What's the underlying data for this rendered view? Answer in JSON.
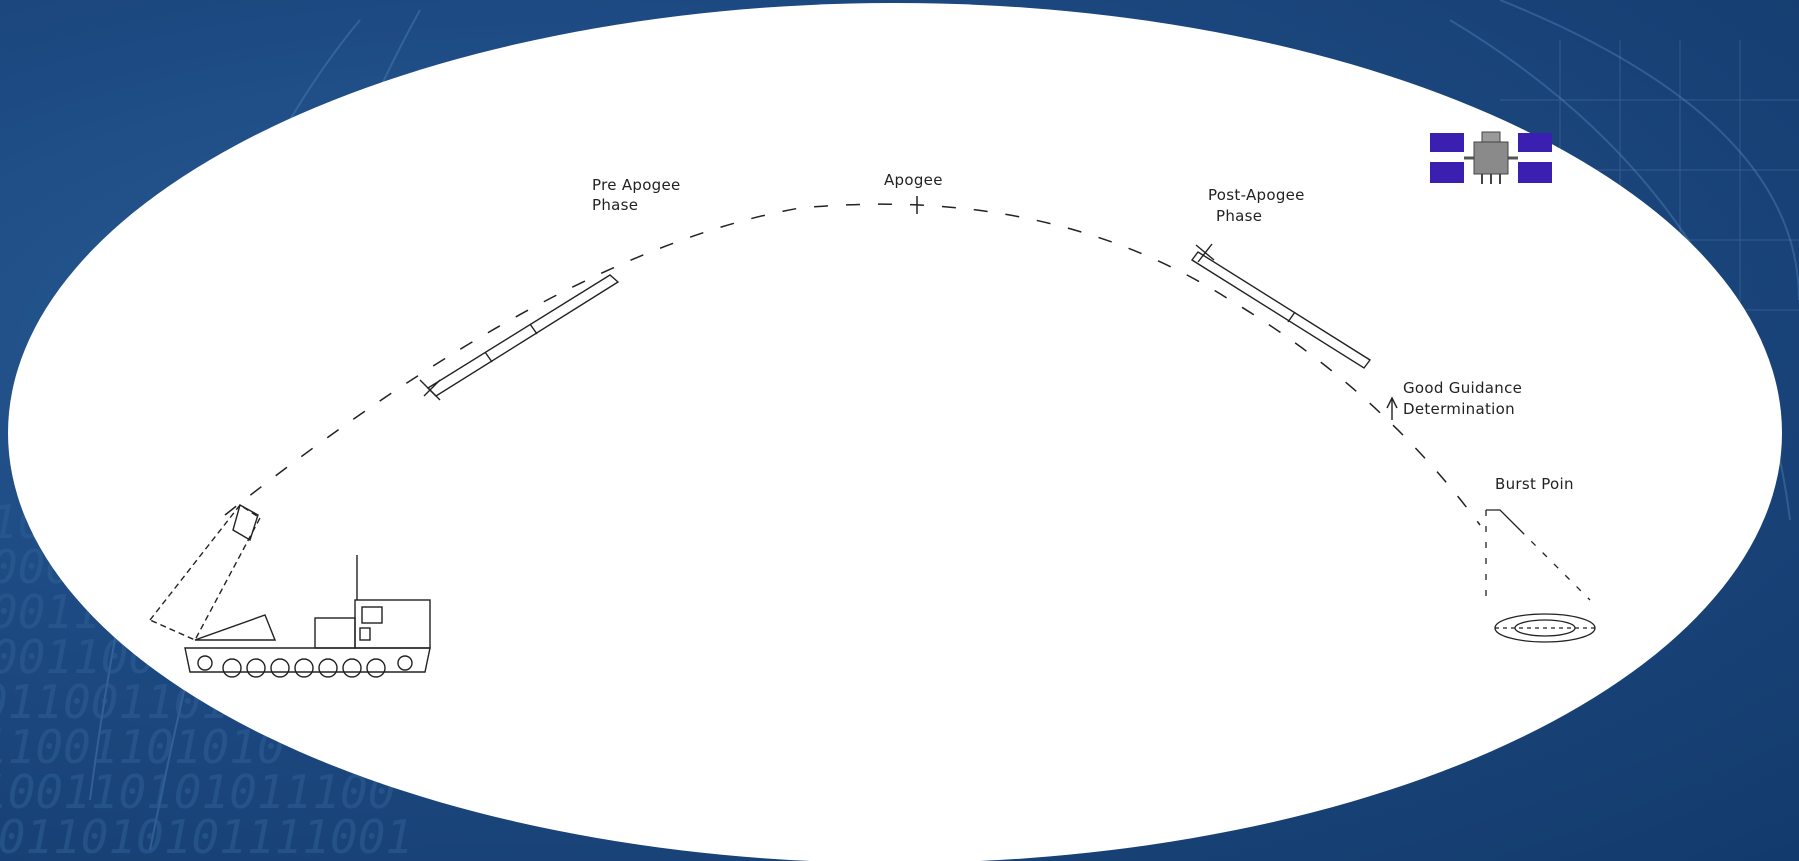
{
  "diagram": {
    "labels": {
      "pre_apogee": [
        "Pre Apogee",
        "Phase"
      ],
      "apogee": "Apogee",
      "post_apogee": [
        "Post-Apogee",
        "Phase"
      ],
      "guidance": [
        "Good  Guidance",
        "Determination"
      ],
      "burst": "Burst  Poin"
    },
    "background_binary": [
      "1001",
      "00011",
      "0011100",
      "00110011",
      "0110011010",
      "11001101010",
      "100110101011100",
      "0011010101111001"
    ],
    "colors": {
      "background": "#1d4a82",
      "ellipse": "#ffffff",
      "satellite_panel": "#3a1fb0",
      "line": "#222222"
    },
    "icons": [
      "launcher-vehicle-icon",
      "missile-icon",
      "satellite-icon",
      "target-icon"
    ]
  }
}
